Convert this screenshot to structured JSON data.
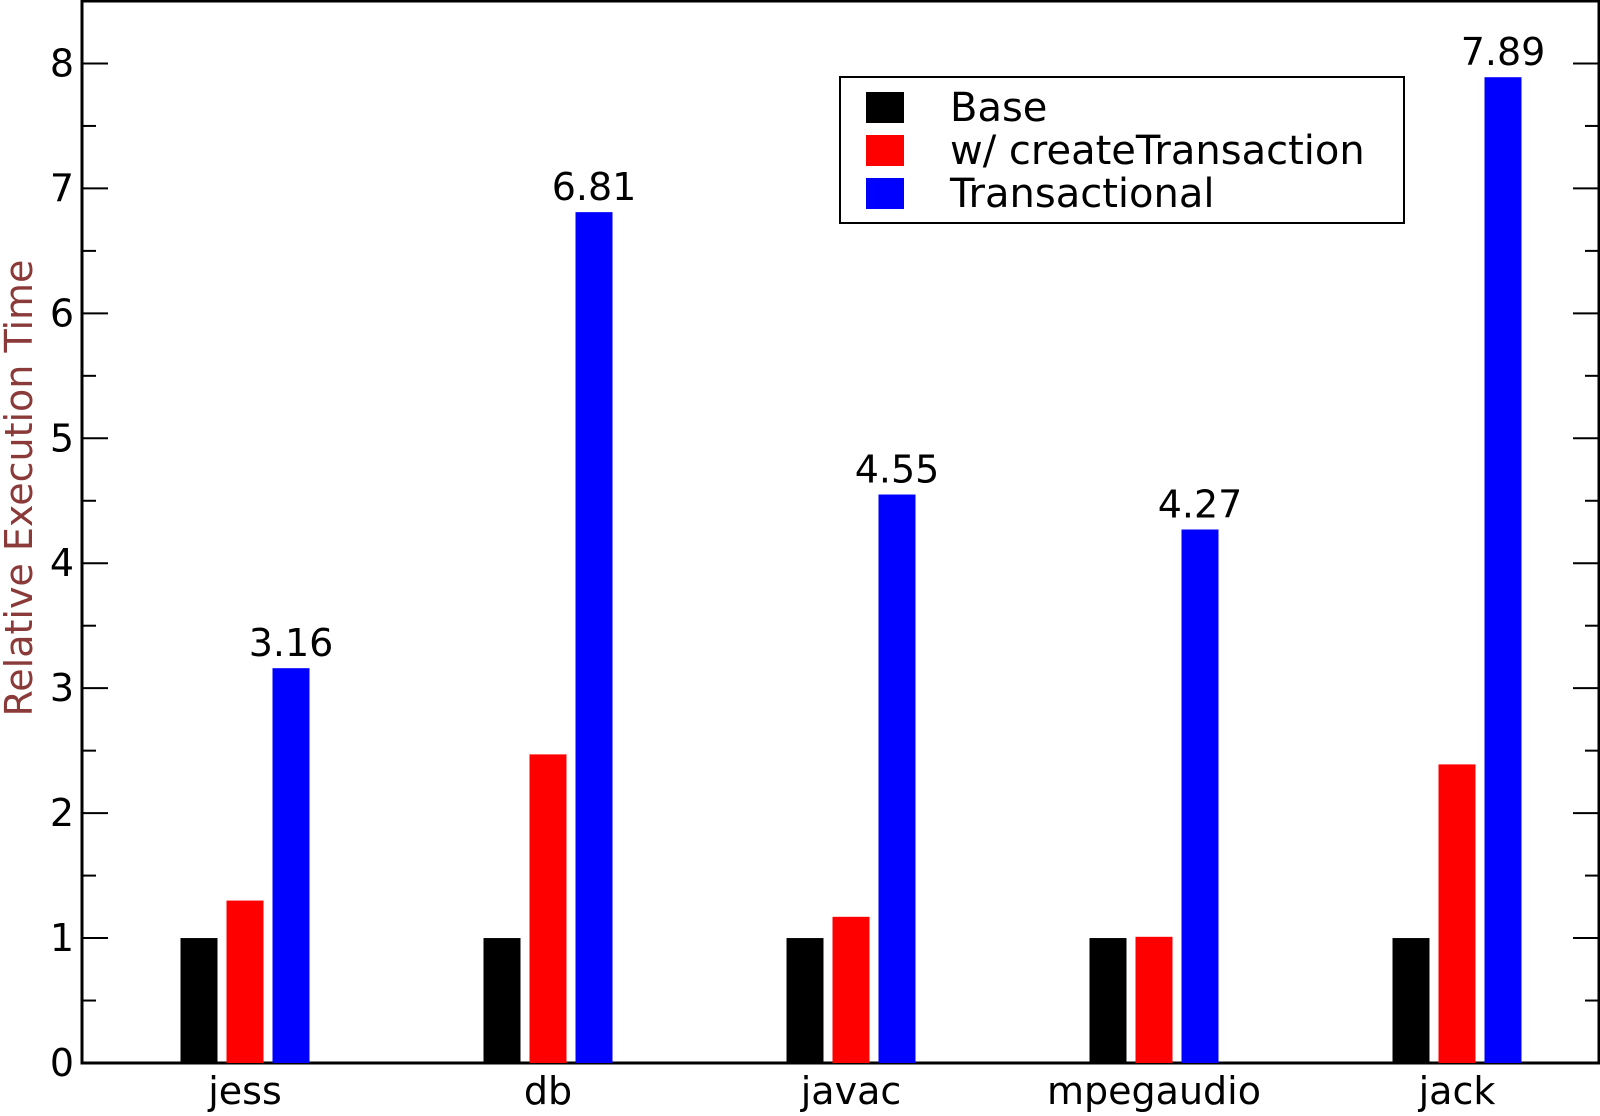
{
  "colors": {
    "base": "#000000",
    "create_transaction": "#ff0000",
    "transactional": "#0000ff",
    "ylabel": "#8b3a3a"
  },
  "chart_data": {
    "type": "bar",
    "title": "",
    "xlabel": "",
    "ylabel": "Relative Execution Time",
    "ylim": [
      0,
      8.5
    ],
    "yticks": [
      0,
      1,
      2,
      3,
      4,
      5,
      6,
      7,
      8
    ],
    "grid": false,
    "legend_position": "top-right",
    "categories": [
      "jess",
      "db",
      "javac",
      "mpegaudio",
      "jack"
    ],
    "series": [
      {
        "name": "Base",
        "color": "#000000",
        "values": [
          1.0,
          1.0,
          1.0,
          1.0,
          1.0
        ]
      },
      {
        "name": "w/ createTransaction",
        "color": "#ff0000",
        "values": [
          1.3,
          2.47,
          1.17,
          1.01,
          2.39
        ]
      },
      {
        "name": "Transactional",
        "color": "#0000ff",
        "values": [
          3.16,
          6.81,
          4.55,
          4.27,
          7.89
        ]
      }
    ],
    "data_labels": [
      "3.16",
      "6.81",
      "4.55",
      "4.27",
      "7.89"
    ]
  }
}
